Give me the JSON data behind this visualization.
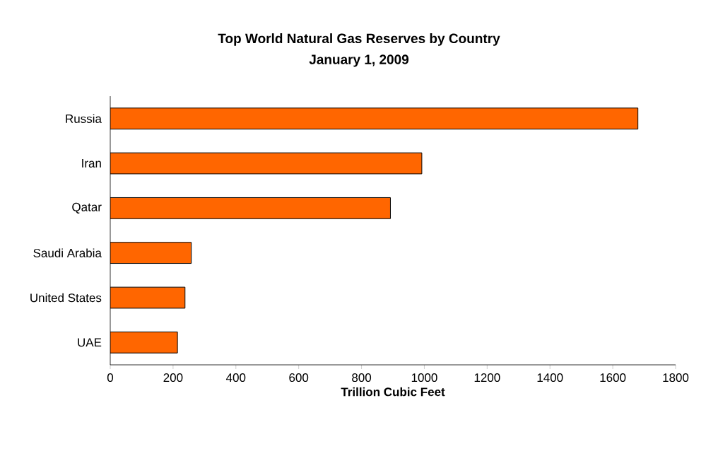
{
  "chart_data": {
    "type": "bar",
    "orientation": "horizontal",
    "title": "Top World Natural Gas Reserves by Country",
    "subtitle": "January 1, 2009",
    "xlabel": "Trillion Cubic Feet",
    "categories": [
      "Russia",
      "Iran",
      "Qatar",
      "Saudi Arabia",
      "United States",
      "UAE"
    ],
    "values": [
      1680,
      992,
      892,
      258,
      238,
      214
    ],
    "color": "#ff6600",
    "xlim": [
      0,
      1800
    ],
    "xticks": [
      0,
      200,
      400,
      600,
      800,
      1000,
      1200,
      1400,
      1600,
      1800
    ],
    "grid": false
  }
}
